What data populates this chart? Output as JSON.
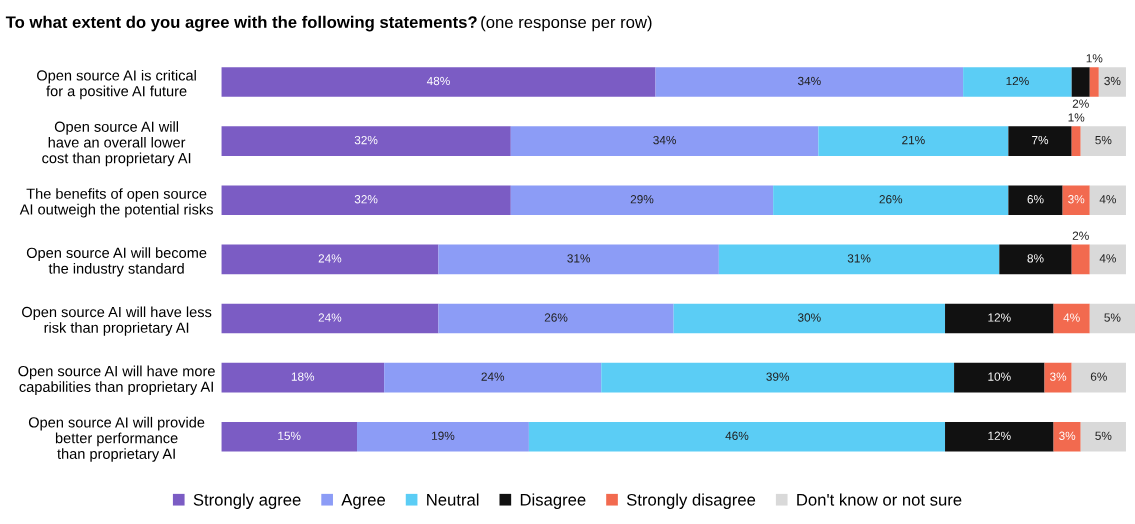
{
  "chart_data": {
    "type": "bar",
    "orientation": "horizontal",
    "stacked": true,
    "legend": "bottom",
    "tick_labels": "y",
    "grid": false,
    "title": "To what extent do you agree with the following statements?",
    "subtitle": "(one response per row)",
    "categories": [
      "Open source AI is critical\nfor a positive AI future",
      "Open source AI will\nhave an overall lower\ncost than proprietary AI",
      "The benefits of open source\nAI outweigh the potential risks",
      "Open source AI will become\nthe industry standard",
      "Open source AI will have less\nrisk than proprietary AI",
      "Open source AI will have more\ncapabilities than proprietary AI",
      "Open source AI will provide\nbetter performance\nthan proprietary AI"
    ],
    "series": [
      {
        "name": "Strongly agree",
        "color": "#7b5cc4",
        "values": [
          48,
          32,
          32,
          24,
          24,
          18,
          15
        ],
        "value_labels": [
          "48%",
          "32%",
          "32%",
          "24%",
          "24%",
          "18%",
          "15%"
        ]
      },
      {
        "name": "Agree",
        "color": "#8c9cf6",
        "values": [
          34,
          34,
          29,
          31,
          26,
          24,
          19
        ],
        "value_labels": [
          "34%",
          "34%",
          "29%",
          "31%",
          "26%",
          "24%",
          "19%"
        ]
      },
      {
        "name": "Neutral",
        "color": "#5bcdf5",
        "values": [
          12,
          21,
          26,
          31,
          30,
          39,
          46
        ],
        "value_labels": [
          "12%",
          "21%",
          "26%",
          "31%",
          "30%",
          "39%",
          "46%"
        ]
      },
      {
        "name": "Disagree",
        "color": "#111111",
        "values": [
          2,
          7,
          6,
          8,
          12,
          10,
          12
        ],
        "value_labels": [
          "2%",
          "7%",
          "6%",
          "8%",
          "12%",
          "10%",
          "12%"
        ]
      },
      {
        "name": "Strongly disagree",
        "color": "#f26a4f",
        "values": [
          1,
          1,
          3,
          2,
          4,
          3,
          3
        ],
        "value_labels": [
          "1%",
          "1%",
          "3%",
          "2%",
          "4%",
          "3%",
          "3%"
        ]
      },
      {
        "name": "Don't know or not sure",
        "color": "#d9d9d9",
        "values": [
          3,
          5,
          4,
          4,
          5,
          6,
          5
        ],
        "value_labels": [
          "3%",
          "5%",
          "4%",
          "4%",
          "5%",
          "6%",
          "5%"
        ]
      }
    ]
  }
}
